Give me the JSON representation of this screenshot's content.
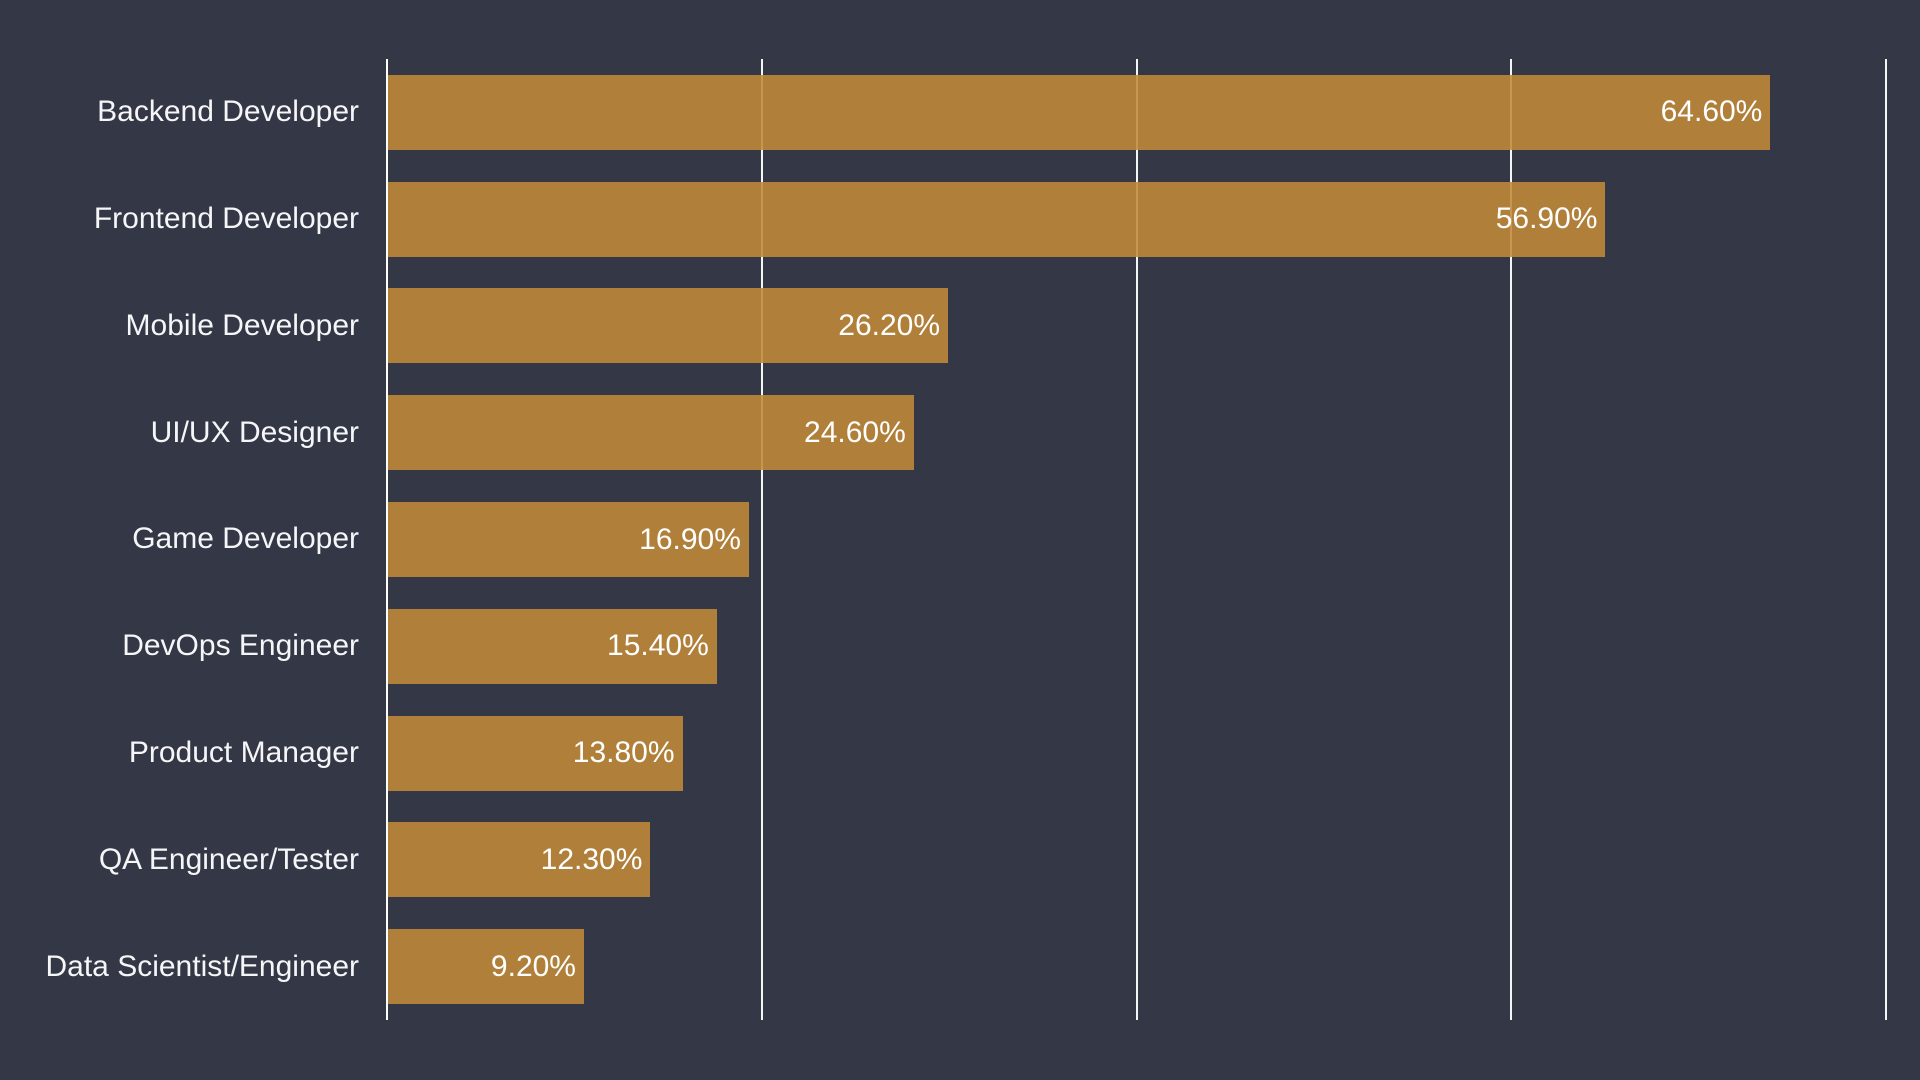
{
  "chart_data": {
    "type": "bar",
    "orientation": "horizontal",
    "title": "",
    "xlabel": "",
    "ylabel": "",
    "categories": [
      "Backend Developer",
      "Frontend Developer",
      "Mobile Developer",
      "UI/UX Designer",
      "Game Developer",
      "DevOps Engineer",
      "Product Manager",
      "QA Engineer/Tester",
      "Data Scientist/Engineer"
    ],
    "values": [
      64.6,
      56.9,
      26.2,
      24.6,
      16.9,
      15.4,
      13.8,
      12.3,
      9.2
    ],
    "value_labels": [
      "64.60%",
      "56.90%",
      "26.20%",
      "24.60%",
      "16.90%",
      "15.40%",
      "13.80%",
      "12.30%",
      "9.20%"
    ],
    "xlim": [
      0,
      70
    ],
    "gridlines_at": [
      17.5,
      35,
      52.5,
      70
    ],
    "grid": true,
    "legend": false,
    "axis_tick_labels_visible": false,
    "value_label_position": "inside-right",
    "colors": {
      "background": "#343745",
      "bar": "#b08039",
      "gridline": "#ffffff",
      "axis_line": "#ffffff",
      "category_label": "#f5f6f8",
      "value_label": "#ffffff"
    }
  }
}
